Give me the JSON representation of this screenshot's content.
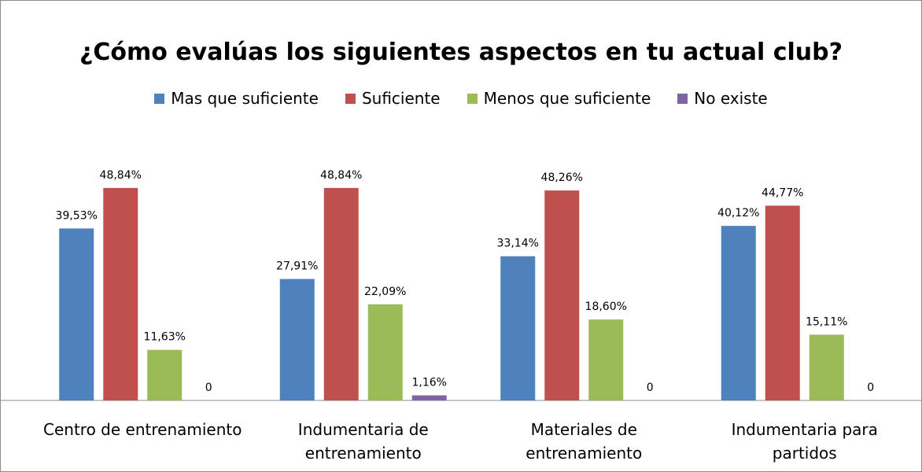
{
  "chart_data": {
    "type": "bar",
    "title": "¿Cómo evalúas los siguientes aspectos en tu actual club?",
    "categories": [
      "Centro de entrenamiento",
      "Indumentaria de entrenamiento",
      "Materiales de entrenamiento",
      "Indumentaria para partidos"
    ],
    "series": [
      {
        "name": "Mas que suficiente",
        "color": "#4f81bd",
        "values": [
          39.53,
          27.91,
          33.14,
          40.12
        ],
        "value_labels": [
          "39,53%",
          "27,91%",
          "33,14%",
          "40,12%"
        ]
      },
      {
        "name": "Suficiente",
        "color": "#c0504d",
        "values": [
          48.84,
          48.84,
          48.26,
          44.77
        ],
        "value_labels": [
          "48,84%",
          "48,84%",
          "48,26%",
          "44,77%"
        ]
      },
      {
        "name": "Menos que suficiente",
        "color": "#9bbb59",
        "values": [
          11.63,
          22.09,
          18.6,
          15.11
        ],
        "value_labels": [
          "11,63%",
          "22,09%",
          "18,60%",
          "15,11%"
        ]
      },
      {
        "name": "No existe",
        "color": "#8064a2",
        "values": [
          0,
          1.16,
          0,
          0
        ],
        "value_labels": [
          "0",
          "1,16%",
          "0",
          "0"
        ]
      }
    ],
    "legend": "top"
  }
}
